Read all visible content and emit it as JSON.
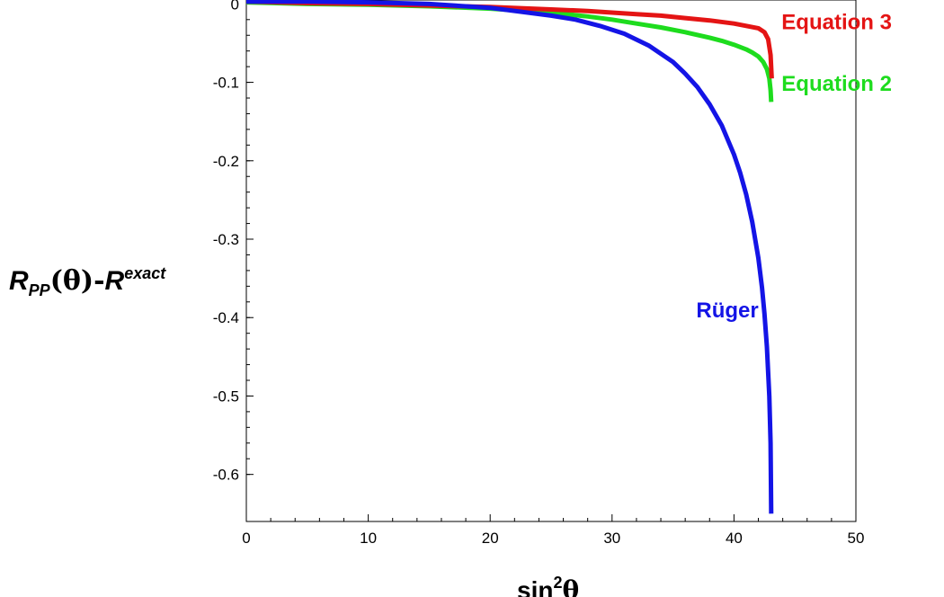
{
  "chart_data": {
    "type": "line",
    "title": "",
    "xlabel": {
      "base": "sin",
      "superscript": "2",
      "symbol": "θ"
    },
    "ylabel": {
      "r1": "R",
      "sub1": "PP",
      "mid": "(θ)-",
      "r2": "R",
      "sup2": "exact"
    },
    "xlim": [
      0,
      50
    ],
    "ylim": [
      -0.66,
      0.005
    ],
    "xticks": [
      0,
      10,
      20,
      30,
      40,
      50
    ],
    "xtick_labels": [
      "0",
      "10",
      "20",
      "30",
      "40",
      "50"
    ],
    "yticks": [
      0,
      -0.1,
      -0.2,
      -0.3,
      -0.4,
      -0.5,
      -0.6
    ],
    "ytick_labels": [
      "0",
      "-0.1",
      "-0.2",
      "-0.3",
      "-0.4",
      "-0.5",
      "-0.6"
    ],
    "grid": false,
    "legend": "none",
    "series": [
      {
        "name": "Equation 3",
        "color": "#e41414",
        "x": [
          0,
          5,
          10,
          15,
          20,
          25,
          28,
          30,
          32,
          34,
          36,
          38,
          40,
          41,
          42,
          42.5,
          42.8,
          43.0,
          43.1
        ],
        "y": [
          0.003,
          0.001,
          0.0,
          -0.002,
          -0.004,
          -0.007,
          -0.009,
          -0.011,
          -0.013,
          -0.015,
          -0.018,
          -0.021,
          -0.025,
          -0.028,
          -0.031,
          -0.036,
          -0.045,
          -0.065,
          -0.095
        ]
      },
      {
        "name": "Equation 2",
        "color": "#1edc1e",
        "x": [
          0,
          5,
          10,
          15,
          20,
          25,
          28,
          30,
          32,
          34,
          36,
          38,
          39,
          40,
          41,
          41.5,
          42,
          42.4,
          42.7,
          42.9,
          43.0,
          43.05
        ],
        "y": [
          0.002,
          0.0,
          -0.001,
          -0.003,
          -0.006,
          -0.011,
          -0.016,
          -0.02,
          -0.025,
          -0.03,
          -0.036,
          -0.043,
          -0.047,
          -0.052,
          -0.058,
          -0.062,
          -0.067,
          -0.074,
          -0.083,
          -0.095,
          -0.11,
          -0.125
        ]
      },
      {
        "name": "Rüger",
        "color": "#1414e6",
        "x": [
          0,
          5,
          10,
          15,
          20,
          25,
          27,
          29,
          31,
          33,
          35,
          36,
          37,
          38,
          39,
          40,
          40.5,
          41,
          41.5,
          42,
          42.3,
          42.5,
          42.7,
          42.9,
          43.0,
          43.05
        ],
        "y": [
          0.003,
          0.003,
          0.002,
          0.0,
          -0.005,
          -0.015,
          -0.02,
          -0.028,
          -0.038,
          -0.053,
          -0.074,
          -0.089,
          -0.106,
          -0.128,
          -0.155,
          -0.192,
          -0.215,
          -0.243,
          -0.278,
          -0.324,
          -0.362,
          -0.395,
          -0.437,
          -0.5,
          -0.56,
          -0.65
        ]
      }
    ],
    "annotations": [
      {
        "text": "Equation 3",
        "color": "#e41414",
        "x": 43.9,
        "y": -0.032
      },
      {
        "text": "Equation 2",
        "color": "#1edc1e",
        "x": 43.9,
        "y": -0.111
      },
      {
        "text": "Rüger",
        "color": "#1414e6",
        "x": 36.9,
        "y": -0.4
      }
    ]
  }
}
